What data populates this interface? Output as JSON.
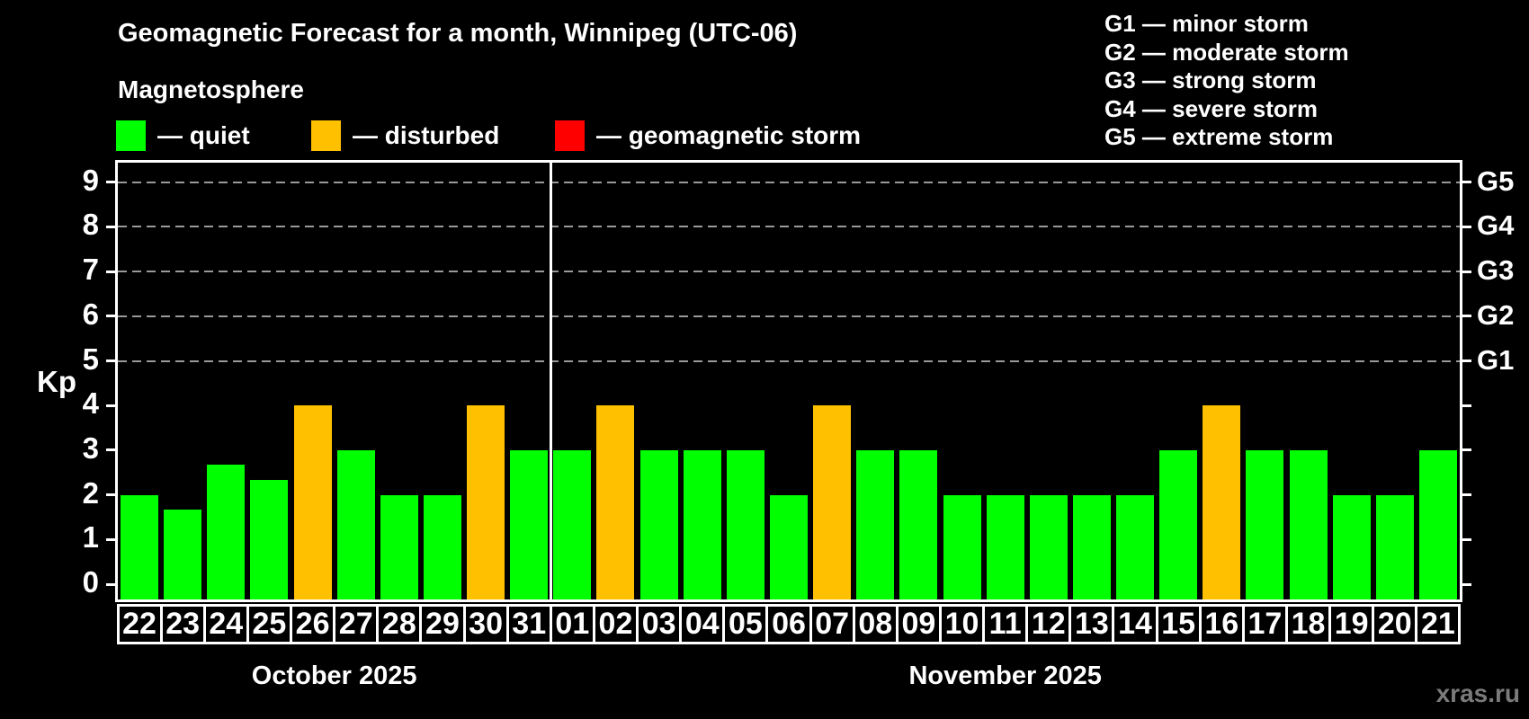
{
  "title": "Geomagnetic Forecast for a month, Winnipeg (UTC-06)",
  "subtitle": "Magnetosphere",
  "colors": {
    "quiet": "#00ff00",
    "disturbed": "#ffc000",
    "storm": "#ff0000",
    "grid": "#999999",
    "axis": "#ffffff",
    "background": "#000000",
    "watermark": "#7b7b7b"
  },
  "legend": {
    "items": [
      {
        "status": "quiet",
        "label": "— quiet"
      },
      {
        "status": "disturbed",
        "label": "— disturbed"
      },
      {
        "status": "storm",
        "label": "— geomagnetic storm"
      }
    ]
  },
  "storm_scale_legend": [
    "G1 — minor storm",
    "G2 — moderate storm",
    "G3 — strong storm",
    "G4 — severe storm",
    "G5 — extreme storm"
  ],
  "watermark": "xras.ru",
  "chart_data": {
    "type": "bar",
    "ylabel": "Kp",
    "ylim": [
      0,
      9.5
    ],
    "yticks": [
      0,
      1,
      2,
      3,
      4,
      5,
      6,
      7,
      8,
      9
    ],
    "gridlines_at_kp": [
      5,
      6,
      7,
      8,
      9
    ],
    "grid": "dashed horizontal lines at storm levels G1–G5",
    "legend_position": "top-left",
    "right_axis": [
      {
        "kp": 5,
        "label": "G1"
      },
      {
        "kp": 6,
        "label": "G2"
      },
      {
        "kp": 7,
        "label": "G3"
      },
      {
        "kp": 8,
        "label": "G4"
      },
      {
        "kp": 9,
        "label": "G5"
      }
    ],
    "months": [
      {
        "label": "October 2025",
        "days": [
          {
            "day": "22",
            "kp": 2.0,
            "status": "quiet"
          },
          {
            "day": "23",
            "kp": 1.67,
            "status": "quiet"
          },
          {
            "day": "24",
            "kp": 2.67,
            "status": "quiet"
          },
          {
            "day": "25",
            "kp": 2.33,
            "status": "quiet"
          },
          {
            "day": "26",
            "kp": 4.0,
            "status": "disturbed"
          },
          {
            "day": "27",
            "kp": 3.0,
            "status": "quiet"
          },
          {
            "day": "28",
            "kp": 2.0,
            "status": "quiet"
          },
          {
            "day": "29",
            "kp": 2.0,
            "status": "quiet"
          },
          {
            "day": "30",
            "kp": 4.0,
            "status": "disturbed"
          },
          {
            "day": "31",
            "kp": 3.0,
            "status": "quiet"
          }
        ]
      },
      {
        "label": "November 2025",
        "days": [
          {
            "day": "01",
            "kp": 3.0,
            "status": "quiet"
          },
          {
            "day": "02",
            "kp": 4.0,
            "status": "disturbed"
          },
          {
            "day": "03",
            "kp": 3.0,
            "status": "quiet"
          },
          {
            "day": "04",
            "kp": 3.0,
            "status": "quiet"
          },
          {
            "day": "05",
            "kp": 3.0,
            "status": "quiet"
          },
          {
            "day": "06",
            "kp": 2.0,
            "status": "quiet"
          },
          {
            "day": "07",
            "kp": 4.0,
            "status": "disturbed"
          },
          {
            "day": "08",
            "kp": 3.0,
            "status": "quiet"
          },
          {
            "day": "09",
            "kp": 3.0,
            "status": "quiet"
          },
          {
            "day": "10",
            "kp": 2.0,
            "status": "quiet"
          },
          {
            "day": "11",
            "kp": 2.0,
            "status": "quiet"
          },
          {
            "day": "12",
            "kp": 2.0,
            "status": "quiet"
          },
          {
            "day": "13",
            "kp": 2.0,
            "status": "quiet"
          },
          {
            "day": "14",
            "kp": 2.0,
            "status": "quiet"
          },
          {
            "day": "15",
            "kp": 3.0,
            "status": "quiet"
          },
          {
            "day": "16",
            "kp": 4.0,
            "status": "disturbed"
          },
          {
            "day": "17",
            "kp": 3.0,
            "status": "quiet"
          },
          {
            "day": "18",
            "kp": 3.0,
            "status": "quiet"
          },
          {
            "day": "19",
            "kp": 2.0,
            "status": "quiet"
          },
          {
            "day": "20",
            "kp": 2.0,
            "status": "quiet"
          },
          {
            "day": "21",
            "kp": 3.0,
            "status": "quiet"
          }
        ]
      }
    ]
  }
}
